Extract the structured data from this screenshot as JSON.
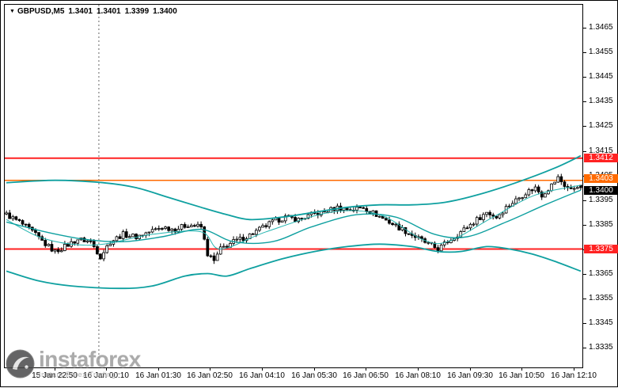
{
  "window": {
    "symbol": "GBPUSD,M5",
    "open": "1.3401",
    "high": "1.3401",
    "low": "1.3399",
    "close": "1.3400"
  },
  "watermark": {
    "brand": "instaforex",
    "tagline": "Instant Forex Trading"
  },
  "colors": {
    "background": "#ffffff",
    "border": "#000000",
    "band_teal": "#0fa0a0",
    "thin_ma_teal": "#25b5b0",
    "resistance_red": "#ff2222",
    "signal_orange": "#ff6a00",
    "bid_badge_black": "#000000",
    "candle_up": "#ffffff",
    "candle_down": "#000000",
    "watermark_gray": "#9d9d9d",
    "separator_gray": "#666666"
  },
  "chart_data": {
    "type": "candlestick",
    "title": "GBPUSD,M5",
    "symbol": "GBPUSD",
    "timeframe": "M5",
    "num_candles": 178,
    "day_separator_index": 29,
    "current_bar": {
      "open": 1.3401,
      "high": 1.3401,
      "low": 1.3399,
      "close": 1.34
    },
    "y_axis": {
      "top": 1.34745,
      "bottom": 1.33268,
      "tick_step": 0.001,
      "ticks": [
        "1.3465",
        "1.3455",
        "1.3445",
        "1.3435",
        "1.3425",
        "1.3415",
        "1.3405",
        "1.3395",
        "1.3385",
        "1.3375",
        "1.3365",
        "1.3355",
        "1.3345",
        "1.3335"
      ]
    },
    "x_axis": {
      "ticks": [
        {
          "label": "15 Jan 22:50",
          "i": 15
        },
        {
          "label": "16 Jan 00:10",
          "i": 31
        },
        {
          "label": "16 Jan 01:30",
          "i": 47
        },
        {
          "label": "16 Jan 02:50",
          "i": 63
        },
        {
          "label": "16 Jan 04:10",
          "i": 79
        },
        {
          "label": "16 Jan 05:30",
          "i": 95
        },
        {
          "label": "16 Jan 06:50",
          "i": 111
        },
        {
          "label": "16 Jan 08:10",
          "i": 127
        },
        {
          "label": "16 Jan 09:30",
          "i": 143
        },
        {
          "label": "16 Jan 10:50",
          "i": 159
        },
        {
          "label": "16 Jan 12:10",
          "i": 175
        }
      ]
    },
    "hlines": [
      {
        "price": 1.3412,
        "label": "1.3412",
        "color": "#ff2222",
        "width": 2,
        "badge_dy": 0
      },
      {
        "price": 1.3403,
        "label": "1.3403",
        "color": "#ff6a00",
        "width": 1.5,
        "badge_dy": -2
      },
      {
        "price": 1.3375,
        "label": "1.3375",
        "color": "#ff2222",
        "width": 2,
        "badge_dy": 0
      }
    ],
    "current_price_badge": {
      "price": 1.34,
      "label": "1.3400",
      "color": "#000000",
      "badge_dy": 3
    },
    "close_path": [
      [
        0,
        1.3389
      ],
      [
        4,
        1.3386
      ],
      [
        8,
        1.3382
      ],
      [
        12,
        1.3377
      ],
      [
        15,
        1.3374
      ],
      [
        18,
        1.3376
      ],
      [
        22,
        1.3379
      ],
      [
        26,
        1.3378
      ],
      [
        29,
        1.3372
      ],
      [
        32,
        1.3378
      ],
      [
        36,
        1.3381
      ],
      [
        40,
        1.338
      ],
      [
        44,
        1.3382
      ],
      [
        48,
        1.3384
      ],
      [
        52,
        1.3383
      ],
      [
        56,
        1.3385
      ],
      [
        60,
        1.3384
      ],
      [
        62,
        1.3373
      ],
      [
        64,
        1.337
      ],
      [
        66,
        1.3375
      ],
      [
        70,
        1.3378
      ],
      [
        74,
        1.338
      ],
      [
        78,
        1.3383
      ],
      [
        82,
        1.3386
      ],
      [
        86,
        1.3388
      ],
      [
        90,
        1.3387
      ],
      [
        94,
        1.3389
      ],
      [
        98,
        1.339
      ],
      [
        102,
        1.3392
      ],
      [
        106,
        1.3391
      ],
      [
        110,
        1.3392
      ],
      [
        114,
        1.3389
      ],
      [
        118,
        1.3386
      ],
      [
        122,
        1.3383
      ],
      [
        126,
        1.338
      ],
      [
        130,
        1.3377
      ],
      [
        133,
        1.3375
      ],
      [
        136,
        1.3378
      ],
      [
        139,
        1.3381
      ],
      [
        142,
        1.3384
      ],
      [
        145,
        1.3387
      ],
      [
        148,
        1.339
      ],
      [
        151,
        1.3388
      ],
      [
        154,
        1.3392
      ],
      [
        157,
        1.3395
      ],
      [
        160,
        1.3398
      ],
      [
        163,
        1.34
      ],
      [
        165,
        1.3397
      ],
      [
        168,
        1.3401
      ],
      [
        170,
        1.3404
      ],
      [
        172,
        1.3401
      ],
      [
        174,
        1.3399
      ],
      [
        176,
        1.3401
      ],
      [
        177,
        1.34
      ]
    ],
    "bollinger": {
      "upper": [
        [
          0,
          1.3402
        ],
        [
          15,
          1.3403
        ],
        [
          30,
          1.3402
        ],
        [
          40,
          1.34
        ],
        [
          50,
          1.3396
        ],
        [
          60,
          1.3392
        ],
        [
          68,
          1.3389
        ],
        [
          75,
          1.3387
        ],
        [
          85,
          1.3388
        ],
        [
          95,
          1.339
        ],
        [
          105,
          1.3392
        ],
        [
          115,
          1.3393
        ],
        [
          125,
          1.3393
        ],
        [
          135,
          1.3394
        ],
        [
          145,
          1.3397
        ],
        [
          157,
          1.3402
        ],
        [
          169,
          1.3408
        ],
        [
          177,
          1.3413
        ]
      ],
      "middle": [
        [
          0,
          1.3386
        ],
        [
          12,
          1.3382
        ],
        [
          24,
          1.3379
        ],
        [
          36,
          1.3378
        ],
        [
          48,
          1.338
        ],
        [
          60,
          1.3383
        ],
        [
          70,
          1.3378
        ],
        [
          82,
          1.3378
        ],
        [
          94,
          1.3384
        ],
        [
          108,
          1.3389
        ],
        [
          120,
          1.3388
        ],
        [
          132,
          1.3381
        ],
        [
          142,
          1.338
        ],
        [
          154,
          1.3386
        ],
        [
          166,
          1.3393
        ],
        [
          177,
          1.3399
        ]
      ],
      "lower": [
        [
          0,
          1.3366
        ],
        [
          10,
          1.3362
        ],
        [
          20,
          1.336
        ],
        [
          35,
          1.3359
        ],
        [
          45,
          1.336
        ],
        [
          55,
          1.3364
        ],
        [
          62,
          1.3365
        ],
        [
          68,
          1.3364
        ],
        [
          75,
          1.3367
        ],
        [
          85,
          1.3371
        ],
        [
          95,
          1.3374
        ],
        [
          105,
          1.3376
        ],
        [
          115,
          1.3377
        ],
        [
          125,
          1.3376
        ],
        [
          133,
          1.3374
        ],
        [
          140,
          1.3374
        ],
        [
          148,
          1.3376
        ],
        [
          155,
          1.3375
        ],
        [
          162,
          1.3373
        ],
        [
          169,
          1.337
        ],
        [
          177,
          1.3366
        ]
      ]
    },
    "ma_thin": [
      [
        0,
        1.3387
      ],
      [
        10,
        1.338
      ],
      [
        20,
        1.3377
      ],
      [
        30,
        1.3377
      ],
      [
        45,
        1.3381
      ],
      [
        60,
        1.3382
      ],
      [
        66,
        1.3375
      ],
      [
        80,
        1.3382
      ],
      [
        100,
        1.339
      ],
      [
        115,
        1.3389
      ],
      [
        128,
        1.3379
      ],
      [
        136,
        1.3378
      ],
      [
        150,
        1.3388
      ],
      [
        163,
        1.3397
      ],
      [
        177,
        1.3401
      ]
    ]
  }
}
